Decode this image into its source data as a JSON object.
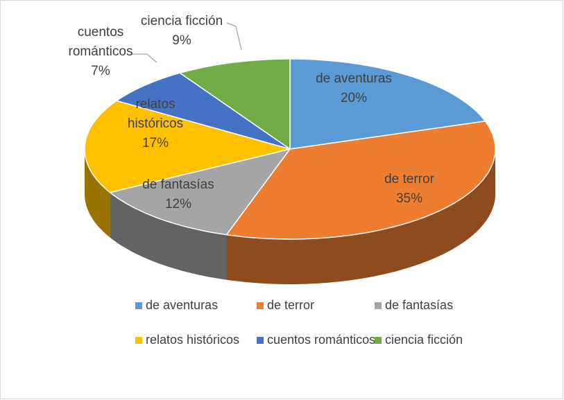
{
  "chart_data": {
    "type": "pie3d",
    "categories": [
      "de aventuras",
      "de terror",
      "de fantasías",
      "relatos históricos",
      "cuentos románticos",
      "ciencia ficción"
    ],
    "values": [
      20,
      35,
      12,
      17,
      7,
      9
    ],
    "value_labels": [
      "20%",
      "35%",
      "12%",
      "17%",
      "7%",
      "9%"
    ],
    "colors": [
      "#5b9bd5",
      "#ed7d31",
      "#a5a5a5",
      "#ffc000",
      "#4472c4",
      "#70ad47"
    ],
    "legend": "bottom"
  }
}
